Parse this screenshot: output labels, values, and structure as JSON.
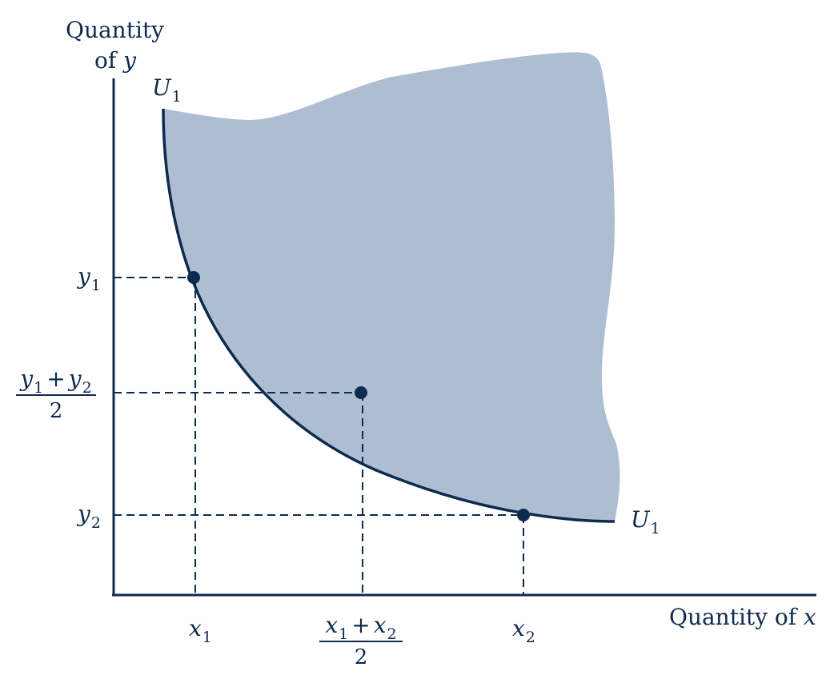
{
  "axes": {
    "y_title_line1": "Quantity",
    "y_title_line2_prefix": "of ",
    "y_title_var": "y",
    "x_title_prefix": "Quantity of ",
    "x_title_var": "x"
  },
  "curve": {
    "name": "U",
    "subscript": "1"
  },
  "ticks": {
    "y1": {
      "var": "y",
      "sub": "1"
    },
    "y2": {
      "var": "y",
      "sub": "2"
    },
    "ymid": {
      "var_a": "y",
      "sub_a": "1",
      "op": "+",
      "var_b": "y",
      "sub_b": "2",
      "den": "2"
    },
    "x1": {
      "var": "x",
      "sub": "1"
    },
    "x2": {
      "var": "x",
      "sub": "2"
    },
    "xmid": {
      "var_a": "x",
      "sub_a": "1",
      "op": "+",
      "var_b": "x",
      "sub_b": "2",
      "den": "2"
    }
  },
  "colors": {
    "ink": "#0d2b4e",
    "region_fill": "#aebdd2"
  }
}
